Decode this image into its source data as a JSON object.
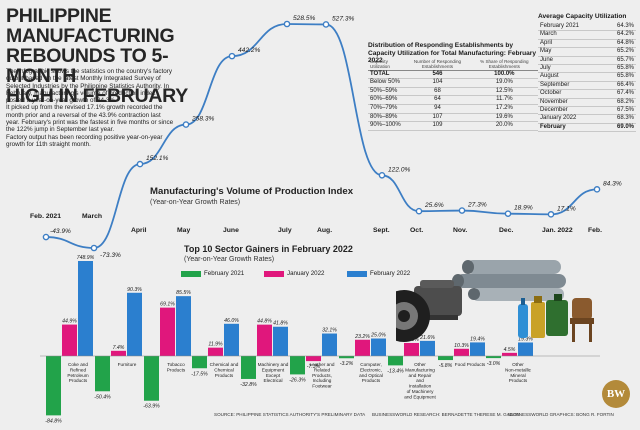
{
  "headline": [
    "PHILIPPINE MANUFACTURING",
    "REBOUNDS TO 5-MONTH",
    "HIGH IN FEBRUARY"
  ],
  "intro": [
    "The infographic shows the statistics on the country's factory output based on the latest Monthly Integrated Survey of Selected Industries by the Philippine Statistics Authority. In February, manufacturing's volume of production index posted a year-on-year growth of 84.3%.",
    "It picked up from the revised 17.1% growth recorded the month prior and a reversal of the 43.9% contraction last year. February's print was the fastest in five months or since the 122% jump in September last year.",
    "Factory output has been recording positive year-on-year growth for 11th straight month."
  ],
  "distribution": {
    "title": "Distribution of Responding Establishments by Capacity Utilization for Total Manufacturing: February 2022",
    "headers": [
      "Capacity Utilization",
      "Number of Responding Establishments",
      "% Share of Responding Establishments"
    ],
    "rows": [
      [
        "TOTAL",
        "546",
        "100.0%"
      ],
      [
        "Below 50%",
        "104",
        "19.0%"
      ],
      [
        "50%–59%",
        "68",
        "12.5%"
      ],
      [
        "60%–69%",
        "64",
        "11.7%"
      ],
      [
        "70%–79%",
        "94",
        "17.2%"
      ],
      [
        "80%–89%",
        "107",
        "19.6%"
      ],
      [
        "90%–100%",
        "109",
        "20.0%"
      ]
    ]
  },
  "acu": {
    "title": "Average Capacity Utilization",
    "rows": [
      [
        "February 2021",
        "64.3%"
      ],
      [
        "March",
        "64.2%"
      ],
      [
        "April",
        "64.8%"
      ],
      [
        "May",
        "65.2%"
      ],
      [
        "June",
        "65.7%"
      ],
      [
        "July",
        "65.8%"
      ],
      [
        "August",
        "65.8%"
      ],
      [
        "September",
        "66.4%"
      ],
      [
        "October",
        "67.4%"
      ],
      [
        "November",
        "68.2%"
      ],
      [
        "December",
        "67.5%"
      ],
      [
        "January 2022",
        "68.3%"
      ],
      [
        "February",
        "69.0%"
      ]
    ]
  },
  "chart_data": [
    {
      "type": "line",
      "title": "Manufacturing's Volume of Production Index",
      "subtitle": "(Year-on-Year Growth Rates)",
      "x": [
        "Feb. 2021",
        "March",
        "April",
        "May",
        "June",
        "July",
        "Aug.",
        "Sept.",
        "Oct.",
        "Nov.",
        "Dec.",
        "Jan. 2022",
        "Feb."
      ],
      "values": [
        -43.9,
        -73.3,
        152.1,
        258.3,
        442.2,
        528.5,
        527.3,
        122.0,
        25.6,
        27.3,
        18.9,
        17.1,
        84.3
      ],
      "labels": [
        "-43.9%",
        "-73.3%",
        "152.1%",
        "258.3%",
        "442.2%",
        "528.5%",
        "527.3%",
        "122.0%",
        "25.6%",
        "27.3%",
        "18.9%",
        "17.1%",
        "84.3%"
      ],
      "ylim": [
        -80,
        530
      ],
      "color": "#3d7ec4"
    },
    {
      "type": "bar",
      "title": "Top 10 Sector Gainers in February 2022",
      "subtitle": "(Year-on-Year Growth Rates)",
      "categories": [
        "Coke and Refined Petroleum Products",
        "Furniture",
        "Tobacco Products",
        "Chemical and Chemical Products",
        "Machinery and Equipment Except Electrical",
        "Leather and Related Products, Including Footwear",
        "Computer, Electronic, and Optical Products",
        "Other Manufacturing and Repair and Installation of Machinery and Equipment",
        "Food Products",
        "Other Non-metallic Mineral Products"
      ],
      "series": [
        {
          "name": "February 2021",
          "color": "#22a34a",
          "values": [
            -84.8,
            -50.4,
            -63.9,
            -17.5,
            -32.8,
            -26.3,
            -3.2,
            -13.4,
            -5.8,
            -3.0
          ]
        },
        {
          "name": "January 2022",
          "color": "#e0177c",
          "values": [
            44.9,
            7.4,
            69.1,
            11.9,
            44.8,
            -7.3,
            23.2,
            18.6,
            10.3,
            4.5
          ]
        },
        {
          "name": "February 2022",
          "color": "#2b7fcf",
          "values": [
            748.9,
            90.3,
            85.5,
            46.0,
            41.8,
            32.1,
            25.0,
            21.6,
            19.4,
            19.3
          ]
        }
      ],
      "labels": [
        [
          "-84.8%",
          "44.9%",
          "748.9%"
        ],
        [
          "-50.4%",
          "7.4%",
          "90.3%"
        ],
        [
          "-63.9%",
          "69.1%",
          "85.5%"
        ],
        [
          "-17.5%",
          "11.9%",
          "46.0%"
        ],
        [
          "-32.8%",
          "44.8%",
          "41.8%"
        ],
        [
          "-26.3%",
          "-7.3%",
          "32.1%"
        ],
        [
          "-3.2%",
          "23.2%",
          "25.0%"
        ],
        [
          "-13.4%",
          "18.6%",
          "21.6%"
        ],
        [
          "-5.8%",
          "10.3%",
          "19.4%"
        ],
        [
          "-3.0%",
          "4.5%",
          "19.3%"
        ]
      ],
      "axis_break": "February 2022 Coke and Refined Petroleum Products bar is truncated"
    }
  ],
  "footer": {
    "source": "SOURCE: PHILIPPINE STATISTICS AUTHORITY'S PRELIMINARY DATA",
    "research": "BUSINESSWORLD RESEARCH: BERNADETTE THERESE M. GADON",
    "graphics": "BUSINESSWORLD GRAPHICS: BONG R. FORTIN"
  },
  "logo": "BW",
  "colors": {
    "line": "#3d7ec4",
    "marker_fill": "#ffffff",
    "accent_text": "#1a1a1a"
  }
}
